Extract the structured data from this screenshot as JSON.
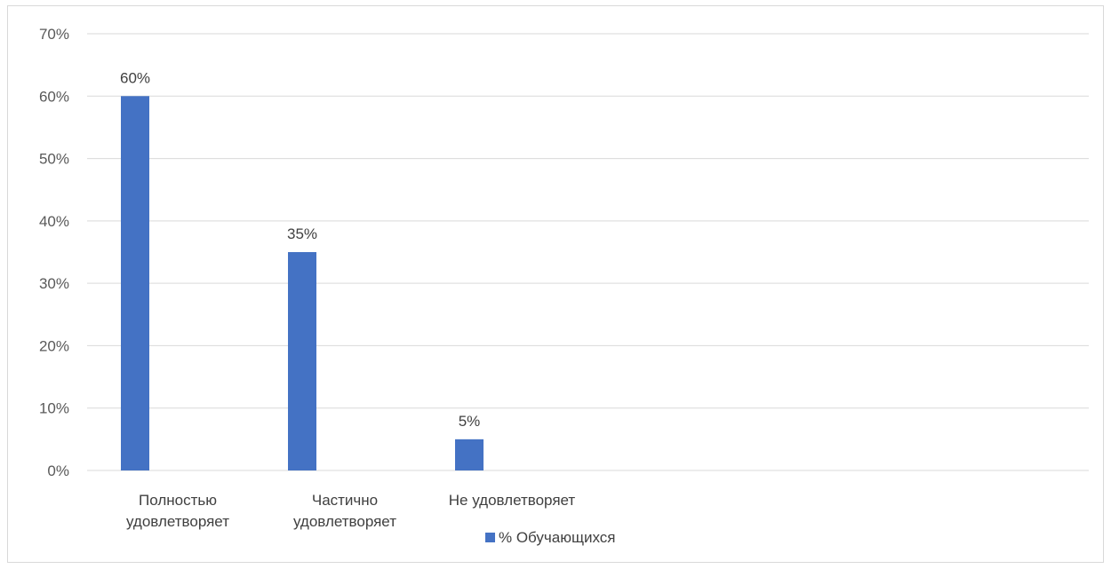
{
  "chart_data": {
    "type": "bar",
    "categories": [
      [
        "Полностью",
        "удовлетворяет"
      ],
      [
        "Частично",
        "удовлетворяет"
      ],
      [
        "Не удовлетворяет"
      ]
    ],
    "series": [
      {
        "name": "% Обучающихся",
        "values": [
          60,
          35,
          5
        ],
        "color": "#4472c4"
      }
    ],
    "data_labels": [
      "60%",
      "35%",
      "5%"
    ],
    "yticks": [
      "0%",
      "10%",
      "20%",
      "30%",
      "40%",
      "50%",
      "60%",
      "70%"
    ],
    "ylim": [
      0,
      70
    ],
    "grid": true,
    "legend_position": "bottom",
    "gridline_color": "#d9d9d9"
  }
}
